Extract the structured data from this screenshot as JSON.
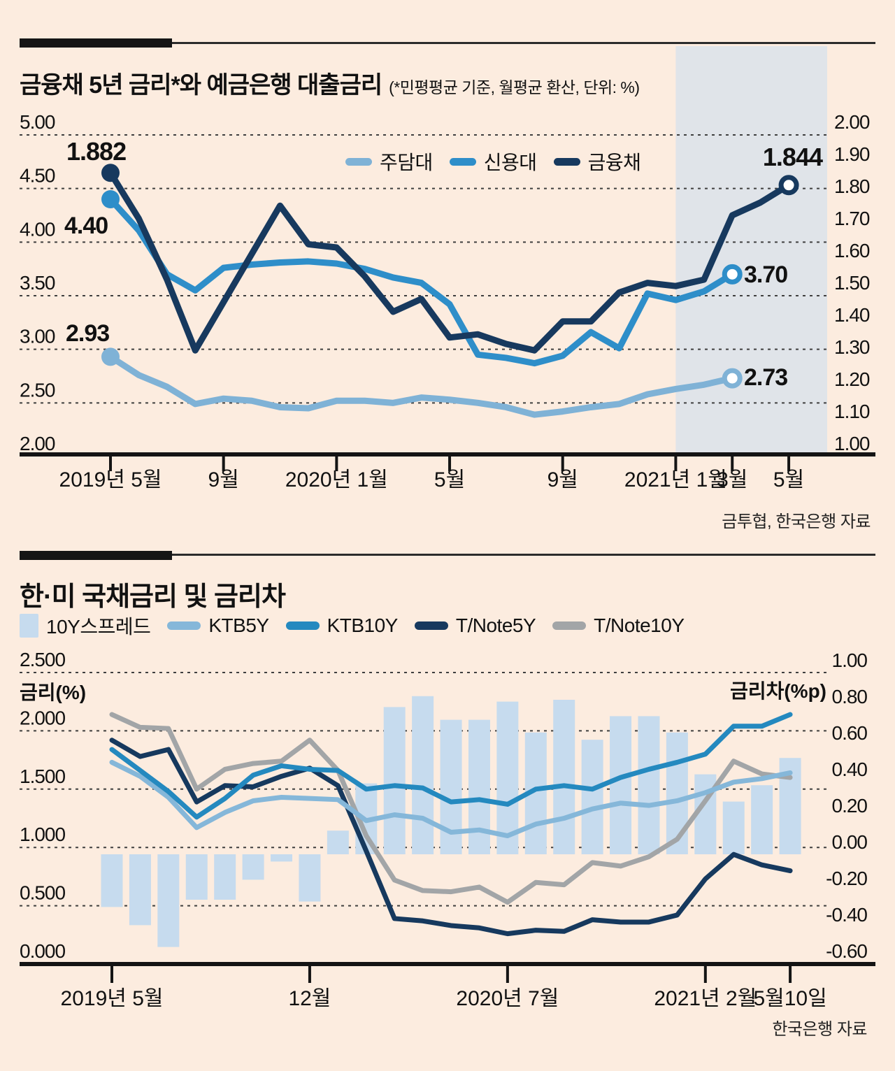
{
  "page": {
    "background": "#fcecdf",
    "highlight_band_color": "#e0e4e9",
    "grid_color": "#3f3f3f",
    "axis_color": "#141414",
    "text_color": "#111111"
  },
  "chart_data": [
    {
      "id": "loan-rates",
      "type": "line",
      "title": "금융채 5년 금리*와 예금은행 대출금리",
      "subtitle": "(*민평평균 기준, 월평균 환산, 단위: %)",
      "source": "금투협, 한국은행 자료",
      "x_months": [
        "2019.05",
        "2019.06",
        "2019.07",
        "2019.08",
        "2019.09",
        "2019.10",
        "2019.11",
        "2019.12",
        "2020.01",
        "2020.02",
        "2020.03",
        "2020.04",
        "2020.05",
        "2020.06",
        "2020.07",
        "2020.08",
        "2020.09",
        "2020.10",
        "2020.11",
        "2020.12",
        "2021.01",
        "2021.02",
        "2021.03",
        "2021.04",
        "2021.05"
      ],
      "x_ticks": [
        {
          "index": 0,
          "label": "2019년 5월"
        },
        {
          "index": 4,
          "label": "9월"
        },
        {
          "index": 8,
          "label": "2020년 1월"
        },
        {
          "index": 12,
          "label": "5월"
        },
        {
          "index": 16,
          "label": "9월"
        },
        {
          "index": 20,
          "label": "2021년 1월"
        },
        {
          "index": 22,
          "label": "3월"
        },
        {
          "index": 24,
          "label": "5월"
        }
      ],
      "left_axis": {
        "min": 2.0,
        "max": 5.0,
        "ticks": [
          "5.00",
          "4.50",
          "4.00",
          "3.50",
          "3.00",
          "2.50",
          "2.00"
        ]
      },
      "right_axis": {
        "min": 1.0,
        "max": 2.0,
        "ticks": [
          "2.00",
          "1.90",
          "1.80",
          "1.70",
          "1.60",
          "1.50",
          "1.40",
          "1.30",
          "1.20",
          "1.10",
          "1.00"
        ]
      },
      "highlight": {
        "from_label": "2021년 1월",
        "from_index": 20,
        "color": "#e0e4e9"
      },
      "series": [
        {
          "name": "주담대",
          "name_en": "mortgage-loan",
          "axis": "left",
          "color": "#7fb2d6",
          "values": [
            2.93,
            2.76,
            2.65,
            2.49,
            2.54,
            2.52,
            2.46,
            2.45,
            2.52,
            2.52,
            2.5,
            2.55,
            2.53,
            2.5,
            2.46,
            2.39,
            2.42,
            2.46,
            2.49,
            2.58,
            2.63,
            2.67,
            2.73
          ]
        },
        {
          "name": "신용대",
          "name_en": "credit-loan",
          "axis": "left",
          "color": "#2e8ec9",
          "values": [
            4.4,
            4.11,
            3.7,
            3.55,
            3.76,
            3.79,
            3.81,
            3.82,
            3.8,
            3.75,
            3.67,
            3.62,
            3.42,
            2.95,
            2.92,
            2.87,
            2.94,
            3.16,
            3.01,
            3.52,
            3.46,
            3.54,
            3.7
          ]
        },
        {
          "name": "금융채",
          "name_en": "bank-bond",
          "axis": "right",
          "color": "#17395e",
          "values": [
            1.882,
            1.74,
            1.55,
            1.33,
            1.48,
            1.63,
            1.78,
            1.66,
            1.65,
            1.56,
            1.45,
            1.49,
            1.37,
            1.38,
            1.35,
            1.33,
            1.42,
            1.42,
            1.51,
            1.54,
            1.53,
            1.55,
            1.75,
            1.79,
            1.844
          ]
        }
      ],
      "annotations": [
        {
          "series": "금융채",
          "position": "start",
          "text": "1.882"
        },
        {
          "series": "신용대",
          "position": "start",
          "text": "4.40"
        },
        {
          "series": "주담대",
          "position": "start",
          "text": "2.93"
        },
        {
          "series": "금융채",
          "position": "end",
          "text": "1.844"
        },
        {
          "series": "신용대",
          "position": "end",
          "text": "3.70"
        },
        {
          "series": "주담대",
          "position": "end",
          "text": "2.73"
        }
      ]
    },
    {
      "id": "kr-us-treasury",
      "type": "bar+line",
      "title": "한·미 국채금리 및 금리차",
      "source": "한국은행 자료",
      "x_months": [
        "2019.05",
        "2019.06",
        "2019.07",
        "2019.08",
        "2019.09",
        "2019.10",
        "2019.11",
        "2019.12",
        "2020.01",
        "2020.02",
        "2020.03",
        "2020.04",
        "2020.05",
        "2020.06",
        "2020.07",
        "2020.08",
        "2020.09",
        "2020.10",
        "2020.11",
        "2020.12",
        "2021.01",
        "2021.02",
        "2021.03",
        "2021.04",
        "2021.05.10"
      ],
      "x_ticks": [
        {
          "index": 0,
          "label": "2019년 5월"
        },
        {
          "index": 7,
          "label": "12월"
        },
        {
          "index": 14,
          "label": "2020년 7월"
        },
        {
          "index": 21,
          "label": "2021년 2월"
        },
        {
          "index": 24,
          "label": "5월10일"
        }
      ],
      "left_axis": {
        "min": 0.0,
        "max": 2.5,
        "label": "금리(%)",
        "ticks": [
          "2.500",
          "2.000",
          "1.500",
          "1.000",
          "0.500",
          "0.000"
        ]
      },
      "right_axis": {
        "min": -0.6,
        "max": 1.0,
        "label": "금리차(%p)",
        "ticks": [
          "1.00",
          "0.80",
          "0.60",
          "0.40",
          "0.20",
          "0.00",
          "-0.20",
          "-0.40",
          "-0.60"
        ]
      },
      "bar_series": {
        "name": "10Y스프레드",
        "name_en": "10y-spread",
        "axis": "right",
        "color": "#c6dbee",
        "values": [
          -0.29,
          -0.39,
          -0.51,
          -0.25,
          -0.25,
          -0.14,
          -0.04,
          -0.26,
          0.13,
          0.39,
          0.81,
          0.87,
          0.74,
          0.74,
          0.84,
          0.67,
          0.85,
          0.63,
          0.76,
          0.76,
          0.67,
          0.44,
          0.29,
          0.38,
          0.53
        ]
      },
      "series": [
        {
          "name": "KTB5Y",
          "name_en": "ktb5y",
          "axis": "left",
          "color": "#85b7d9",
          "values": [
            1.73,
            1.61,
            1.43,
            1.17,
            1.3,
            1.4,
            1.43,
            1.42,
            1.41,
            1.23,
            1.28,
            1.25,
            1.13,
            1.15,
            1.1,
            1.2,
            1.25,
            1.33,
            1.38,
            1.36,
            1.4,
            1.47,
            1.56,
            1.59,
            1.64
          ]
        },
        {
          "name": "KTB10Y",
          "name_en": "ktb10y",
          "axis": "left",
          "color": "#2489bf",
          "values": [
            1.84,
            1.66,
            1.48,
            1.26,
            1.42,
            1.62,
            1.7,
            1.67,
            1.66,
            1.5,
            1.53,
            1.51,
            1.39,
            1.41,
            1.37,
            1.5,
            1.53,
            1.5,
            1.6,
            1.67,
            1.73,
            1.8,
            2.04,
            2.04,
            2.14
          ]
        },
        {
          "name": "T/Note5Y",
          "name_en": "tnote5y",
          "axis": "left",
          "color": "#16395e",
          "values": [
            1.92,
            1.78,
            1.84,
            1.39,
            1.53,
            1.52,
            1.61,
            1.68,
            1.53,
            0.97,
            0.39,
            0.37,
            0.33,
            0.31,
            0.26,
            0.29,
            0.28,
            0.38,
            0.36,
            0.36,
            0.42,
            0.73,
            0.94,
            0.85,
            0.8
          ]
        },
        {
          "name": "T/Note10Y",
          "name_en": "tnote10y",
          "axis": "left",
          "color": "#a2a5a7",
          "values": [
            2.14,
            2.03,
            2.02,
            1.5,
            1.67,
            1.72,
            1.74,
            1.92,
            1.66,
            1.1,
            0.72,
            0.63,
            0.62,
            0.66,
            0.53,
            0.7,
            0.68,
            0.87,
            0.84,
            0.92,
            1.07,
            1.4,
            1.74,
            1.63,
            1.6
          ]
        }
      ]
    }
  ]
}
